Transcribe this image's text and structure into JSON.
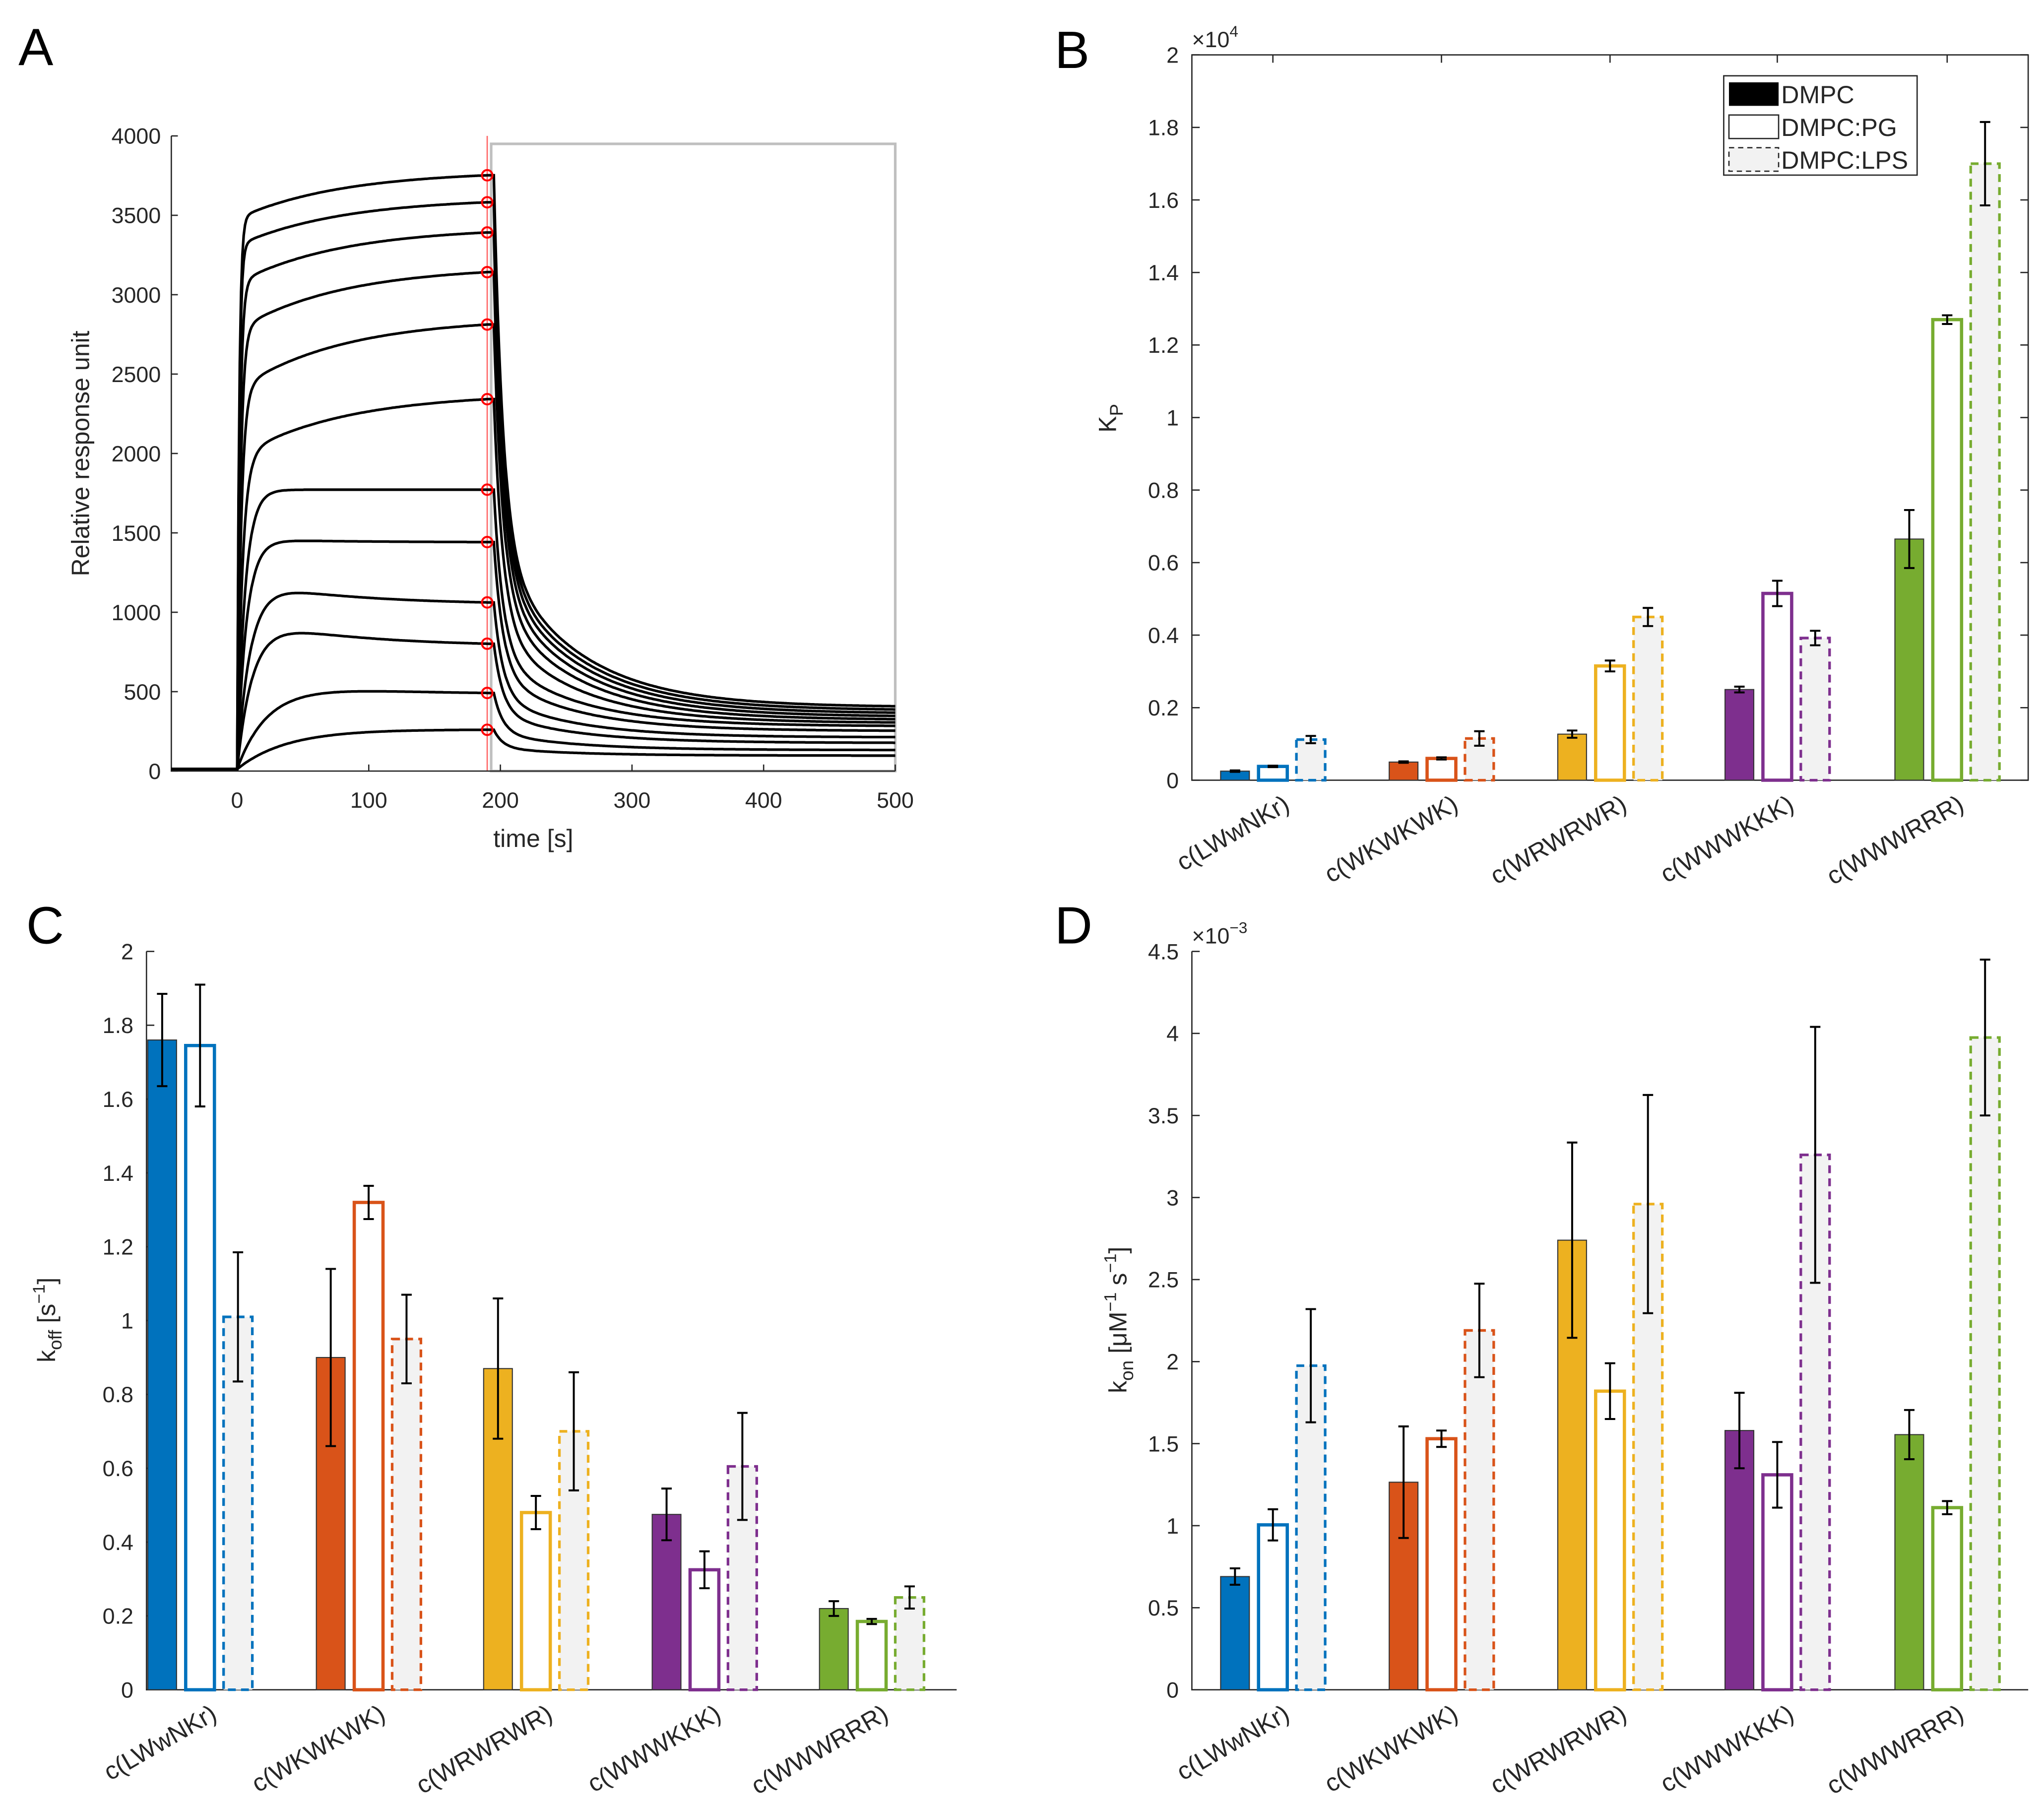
{
  "panels": {
    "a": "A",
    "b": "B",
    "c": "C",
    "d": "D"
  },
  "colors": {
    "peptides": [
      "#0072BD",
      "#D95319",
      "#EDB120",
      "#7E2F8E",
      "#77AC30"
    ],
    "lps_fill": "#F2F2F2",
    "marker": "#FF0000",
    "window": "#BFBFBF"
  },
  "chart_data": [
    {
      "type": "line",
      "id": "A",
      "xlabel": "time [s]",
      "ylabel": "Relative response unit",
      "xlim": [
        -50,
        500
      ],
      "ylim": [
        0,
        4000
      ],
      "xticks": [
        0,
        100,
        200,
        300,
        400,
        500
      ],
      "yticks": [
        0,
        500,
        1000,
        1500,
        2000,
        2500,
        3000,
        3500,
        4000
      ],
      "marker_time_s": 190,
      "fit_window_s": [
        193,
        500
      ],
      "fit_window_max": 3950,
      "injection_end_s": 195,
      "curves": [
        {
          "plateau": 3740,
          "end": 390,
          "tau": 1.5,
          "overshoot": -300
        },
        {
          "plateau": 3570,
          "end": 370,
          "tau": 1.5,
          "overshoot": -300
        },
        {
          "plateau": 3380,
          "end": 350,
          "tau": 2,
          "overshoot": -350
        },
        {
          "plateau": 3130,
          "end": 330,
          "tau": 2.5,
          "overshoot": -400
        },
        {
          "plateau": 2800,
          "end": 310,
          "tau": 3,
          "overshoot": -450
        },
        {
          "plateau": 2330,
          "end": 290,
          "tau": 4,
          "overshoot": -400
        },
        {
          "plateau": 1760,
          "end": 270,
          "tau": 6,
          "overshoot": 0
        },
        {
          "plateau": 1430,
          "end": 240,
          "tau": 7,
          "overshoot": 20
        },
        {
          "plateau": 1050,
          "end": 200,
          "tau": 10,
          "overshoot": 150
        },
        {
          "plateau": 790,
          "end": 165,
          "tau": 12,
          "overshoot": 180
        },
        {
          "plateau": 480,
          "end": 120,
          "tau": 25,
          "overshoot": 100
        },
        {
          "plateau": 250,
          "end": 85,
          "tau": 40,
          "overshoot": 20
        }
      ]
    },
    {
      "type": "bar",
      "id": "B",
      "ylabel_main": "K",
      "ylabel_sub": "P",
      "exponent_base": "×10",
      "exponent": "4",
      "ylim": [
        0,
        2
      ],
      "yticks": [
        "0",
        "0.2",
        "0.4",
        "0.6",
        "0.8",
        "1",
        "1.2",
        "1.4",
        "1.6",
        "1.8",
        "2"
      ],
      "box": true,
      "legend": {
        "placement": "top-right",
        "entries": [
          "DMPC",
          "DMPC:PG",
          "DMPC:LPS"
        ]
      },
      "categories": [
        "c(LWwNKr)",
        "c(WKWKWK)",
        "c(WRWRWR)",
        "c(WWWKKK)",
        "c(WWWRRR)"
      ],
      "series": [
        {
          "name": "DMPC",
          "values": [
            0.025,
            0.05,
            0.127,
            0.25,
            0.665
          ],
          "errors": [
            0.002,
            0.002,
            0.01,
            0.008,
            0.08
          ]
        },
        {
          "name": "DMPC:PG",
          "values": [
            0.038,
            0.06,
            0.315,
            0.515,
            1.27
          ],
          "errors": [
            0.002,
            0.003,
            0.015,
            0.035,
            0.012
          ]
        },
        {
          "name": "DMPC:LPS",
          "values": [
            0.112,
            0.115,
            0.45,
            0.392,
            1.7
          ],
          "errors": [
            0.01,
            0.02,
            0.025,
            0.02,
            0.115
          ]
        }
      ]
    },
    {
      "type": "bar",
      "id": "C",
      "ylabel_main": "k",
      "ylabel_sub": "off",
      "ylabel_unit": " [s",
      "ylabel_unit_exp": "−1",
      "ylabel_close": "]",
      "ylim": [
        0,
        2
      ],
      "yticks": [
        "0",
        "0.2",
        "0.4",
        "0.6",
        "0.8",
        "1",
        "1.2",
        "1.4",
        "1.6",
        "1.8",
        "2"
      ],
      "box": false,
      "categories": [
        "c(LWwNKr)",
        "c(WKWKWK)",
        "c(WRWRWR)",
        "c(WWWKKK)",
        "c(WWWRRR)"
      ],
      "series": [
        {
          "name": "DMPC",
          "values": [
            1.76,
            0.9,
            0.87,
            0.475,
            0.22
          ],
          "errors": [
            0.125,
            0.24,
            0.19,
            0.07,
            0.02
          ]
        },
        {
          "name": "DMPC:PG",
          "values": [
            1.745,
            1.32,
            0.48,
            0.325,
            0.185
          ],
          "errors": [
            0.165,
            0.045,
            0.045,
            0.05,
            0.007
          ]
        },
        {
          "name": "DMPC:LPS",
          "values": [
            1.01,
            0.95,
            0.7,
            0.605,
            0.25
          ],
          "errors": [
            0.175,
            0.12,
            0.16,
            0.145,
            0.03
          ]
        }
      ]
    },
    {
      "type": "bar",
      "id": "D",
      "ylabel_main": "k",
      "ylabel_sub": "on",
      "ylabel_unit": " [μM",
      "ylabel_unit_exp": "−1",
      "ylabel_unit2": " s",
      "ylabel_unit2_exp": "−1",
      "ylabel_close": "]",
      "exponent_base": "×10",
      "exponent": "−3",
      "ylim": [
        0,
        4.5
      ],
      "yticks": [
        "0",
        "0.5",
        "1",
        "1.5",
        "2",
        "2.5",
        "3",
        "3.5",
        "4",
        "4.5"
      ],
      "box": false,
      "categories": [
        "c(LWwNKr)",
        "c(WKWKWK)",
        "c(WRWRWR)",
        "c(WWWKKK)",
        "c(WWWRRR)"
      ],
      "series": [
        {
          "name": "DMPC",
          "values": [
            0.69,
            1.265,
            2.74,
            1.58,
            1.555
          ],
          "errors": [
            0.05,
            0.34,
            0.595,
            0.23,
            0.15
          ]
        },
        {
          "name": "DMPC:PG",
          "values": [
            1.005,
            1.53,
            1.82,
            1.31,
            1.11
          ],
          "errors": [
            0.095,
            0.05,
            0.17,
            0.2,
            0.04
          ]
        },
        {
          "name": "DMPC:LPS",
          "values": [
            1.975,
            2.19,
            2.96,
            3.26,
            3.975
          ],
          "errors": [
            0.345,
            0.285,
            0.665,
            0.78,
            0.475
          ]
        }
      ]
    }
  ]
}
